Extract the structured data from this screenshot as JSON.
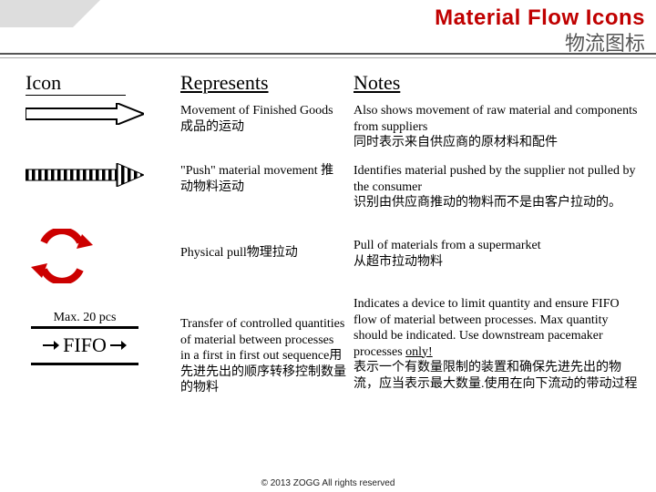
{
  "header": {
    "title_en": "Material Flow Icons",
    "title_zh": "物流图标",
    "title_color": "#c00000",
    "subtitle_color": "#555555"
  },
  "columns": {
    "icon": "Icon",
    "represents": "Represents",
    "notes": "Notes"
  },
  "rows": [
    {
      "icon_name": "finished-goods-arrow",
      "represents": "Movement of Finished Goods         成品的运动",
      "notes": "Also shows movement of raw material and components from suppliers\n同时表示来自供应商的原材料和配件"
    },
    {
      "icon_name": "push-arrow",
      "represents": "\"Push\" material movement 推动物料运动",
      "notes": "Identifies material pushed by the supplier not pulled by the consumer\n识别由供应商推动的物料而不是由客户拉动的。"
    },
    {
      "icon_name": "physical-pull-arrows",
      "represents": "Physical pull物理拉动",
      "notes": "Pull of materials from a supermarket\n从超市拉动物料",
      "icon_color": "#cc0000"
    },
    {
      "icon_name": "fifo-box",
      "fifo_max_label": "Max. 20 pcs",
      "fifo_label": "FIFO",
      "represents": "Transfer of controlled quantities of material between processes in a first in first out sequence用先进先出的顺序转移控制数量的物料",
      "notes_pre": "Indicates a device to limit quantity and ensure FIFO flow of material between processes.  Max quantity should be indicated.  Use downstream pacemaker processes ",
      "notes_underlined": "only!",
      "notes_post": "\n表示一个有数量限制的装置和确保先进先出的物流，应当表示最大数量.使用在向下流动的带动过程"
    }
  ],
  "footer": "© 2013 ZOGG  All rights reserved",
  "colors": {
    "background": "#ffffff",
    "text": "#000000",
    "rule": "#555555"
  }
}
